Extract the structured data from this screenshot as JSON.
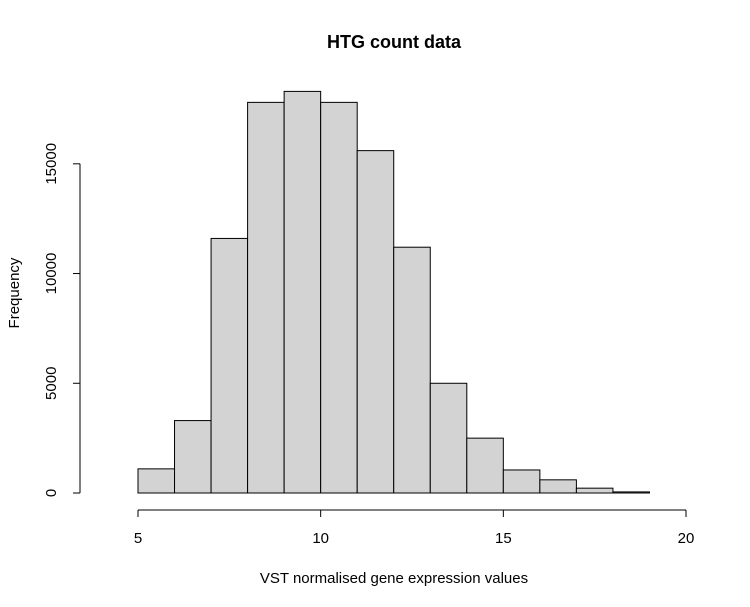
{
  "chart_data": {
    "type": "bar",
    "subtype": "histogram",
    "title": "HTG count data",
    "xlabel": "VST normalised gene expression values",
    "ylabel": "Frequency",
    "xlim": [
      5,
      20
    ],
    "ylim": [
      0,
      18500
    ],
    "x_ticks": [
      5,
      10,
      15,
      20
    ],
    "y_ticks": [
      0,
      5000,
      10000,
      15000
    ],
    "bin_edges": [
      5,
      6,
      7,
      8,
      9,
      10,
      11,
      12,
      13,
      14,
      15,
      16,
      17,
      18,
      19
    ],
    "values": [
      1100,
      3300,
      11600,
      17800,
      18300,
      17800,
      15600,
      11200,
      5000,
      2500,
      1050,
      600,
      220,
      50
    ],
    "bar_color": "#d3d3d3",
    "grid": false
  }
}
